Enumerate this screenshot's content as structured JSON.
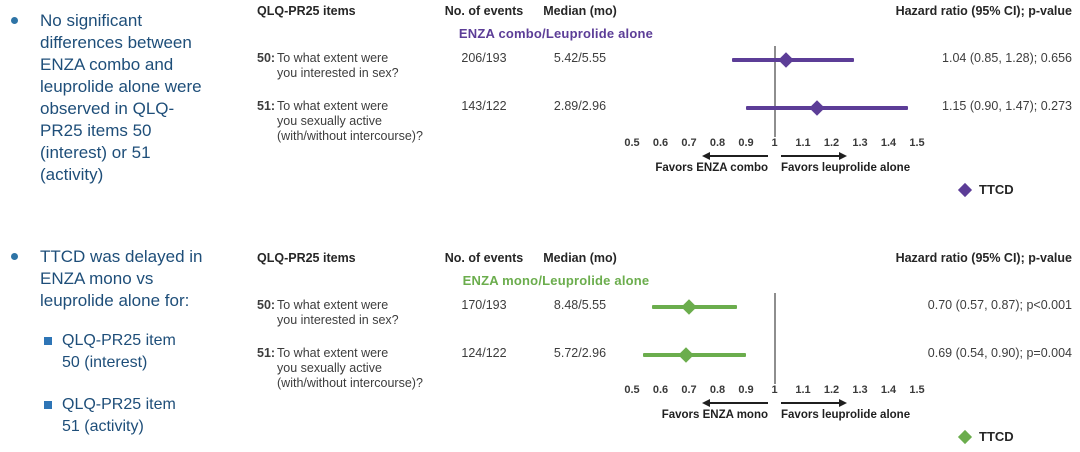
{
  "colors": {
    "bullet_text": "#1E4E79",
    "bullet_marker": "#2E74A6",
    "sub_marker": "#2E75B6",
    "combo_accent": "#5C3D97",
    "mono_accent": "#6BAD4D"
  },
  "bullets": [
    {
      "text": "No significant\ndifferences between\nENZA combo and\nleuprolide alone were\nobserved in QLQ-\nPR25 items 50\n(interest) or 51\n(activity)"
    },
    {
      "text": "TTCD was delayed in\nENZA mono vs\nleuprolide alone for:",
      "sub_items": [
        "QLQ-PR25 item\n50 (interest)",
        "QLQ-PR25 item\n51 (activity)"
      ]
    }
  ],
  "chart_data": [
    {
      "type": "forest",
      "comparison": "ENZA combo/Leuprolide alone",
      "accent_color": "#5C3D97",
      "columns": {
        "items": "QLQ-PR25 items",
        "events": "No. of events",
        "median": "Median (mo)",
        "hazard": "Hazard ratio (95% CI); p-value"
      },
      "rows": [
        {
          "num": "50:",
          "question": "To what extent were\nyou interested in sex?",
          "events": "206/193",
          "median_mo": "5.42/5.55",
          "hr": 1.04,
          "ci_low": 0.85,
          "ci_high": 1.28,
          "hr_label": "1.04 (0.85, 1.28); 0.656"
        },
        {
          "num": "51:",
          "question": "To what extent were\nyou sexually active\n(with/without intercourse)?",
          "events": "143/122",
          "median_mo": "2.89/2.96",
          "hr": 1.15,
          "ci_low": 0.9,
          "ci_high": 1.47,
          "hr_label": "1.15 (0.90, 1.47); 0.273"
        }
      ],
      "axis": {
        "min": 0.5,
        "max": 1.5,
        "ref_line": 1,
        "tick_labels": [
          "0.5",
          "0.6",
          "0.7",
          "0.8",
          "0.9",
          "1",
          "1.1",
          "1.2",
          "1.3",
          "1.4",
          "1.5"
        ]
      },
      "favors_left": "Favors ENZA combo",
      "favors_right": "Favors leuprolide alone",
      "legend_label": "TTCD"
    },
    {
      "type": "forest",
      "comparison": "ENZA mono/Leuprolide alone",
      "accent_color": "#6BAD4D",
      "columns": {
        "items": "QLQ-PR25 items",
        "events": "No. of events",
        "median": "Median (mo)",
        "hazard": "Hazard ratio (95% CI); p-value"
      },
      "rows": [
        {
          "num": "50:",
          "question": "To what extent were\nyou interested in sex?",
          "events": "170/193",
          "median_mo": "8.48/5.55",
          "hr": 0.7,
          "ci_low": 0.57,
          "ci_high": 0.87,
          "hr_label": "0.70 (0.57, 0.87); p<0.001"
        },
        {
          "num": "51:",
          "question": "To what extent were\nyou sexually active\n(with/without intercourse)?",
          "events": "124/122",
          "median_mo": "5.72/2.96",
          "hr": 0.69,
          "ci_low": 0.54,
          "ci_high": 0.9,
          "hr_label": "0.69 (0.54, 0.90); p=0.004"
        }
      ],
      "axis": {
        "min": 0.5,
        "max": 1.5,
        "ref_line": 1,
        "tick_labels": [
          "0.5",
          "0.6",
          "0.7",
          "0.8",
          "0.9",
          "1",
          "1.1",
          "1.2",
          "1.3",
          "1.4",
          "1.5"
        ]
      },
      "favors_left": "Favors ENZA mono",
      "favors_right": "Favors leuprolide alone",
      "legend_label": "TTCD"
    }
  ]
}
